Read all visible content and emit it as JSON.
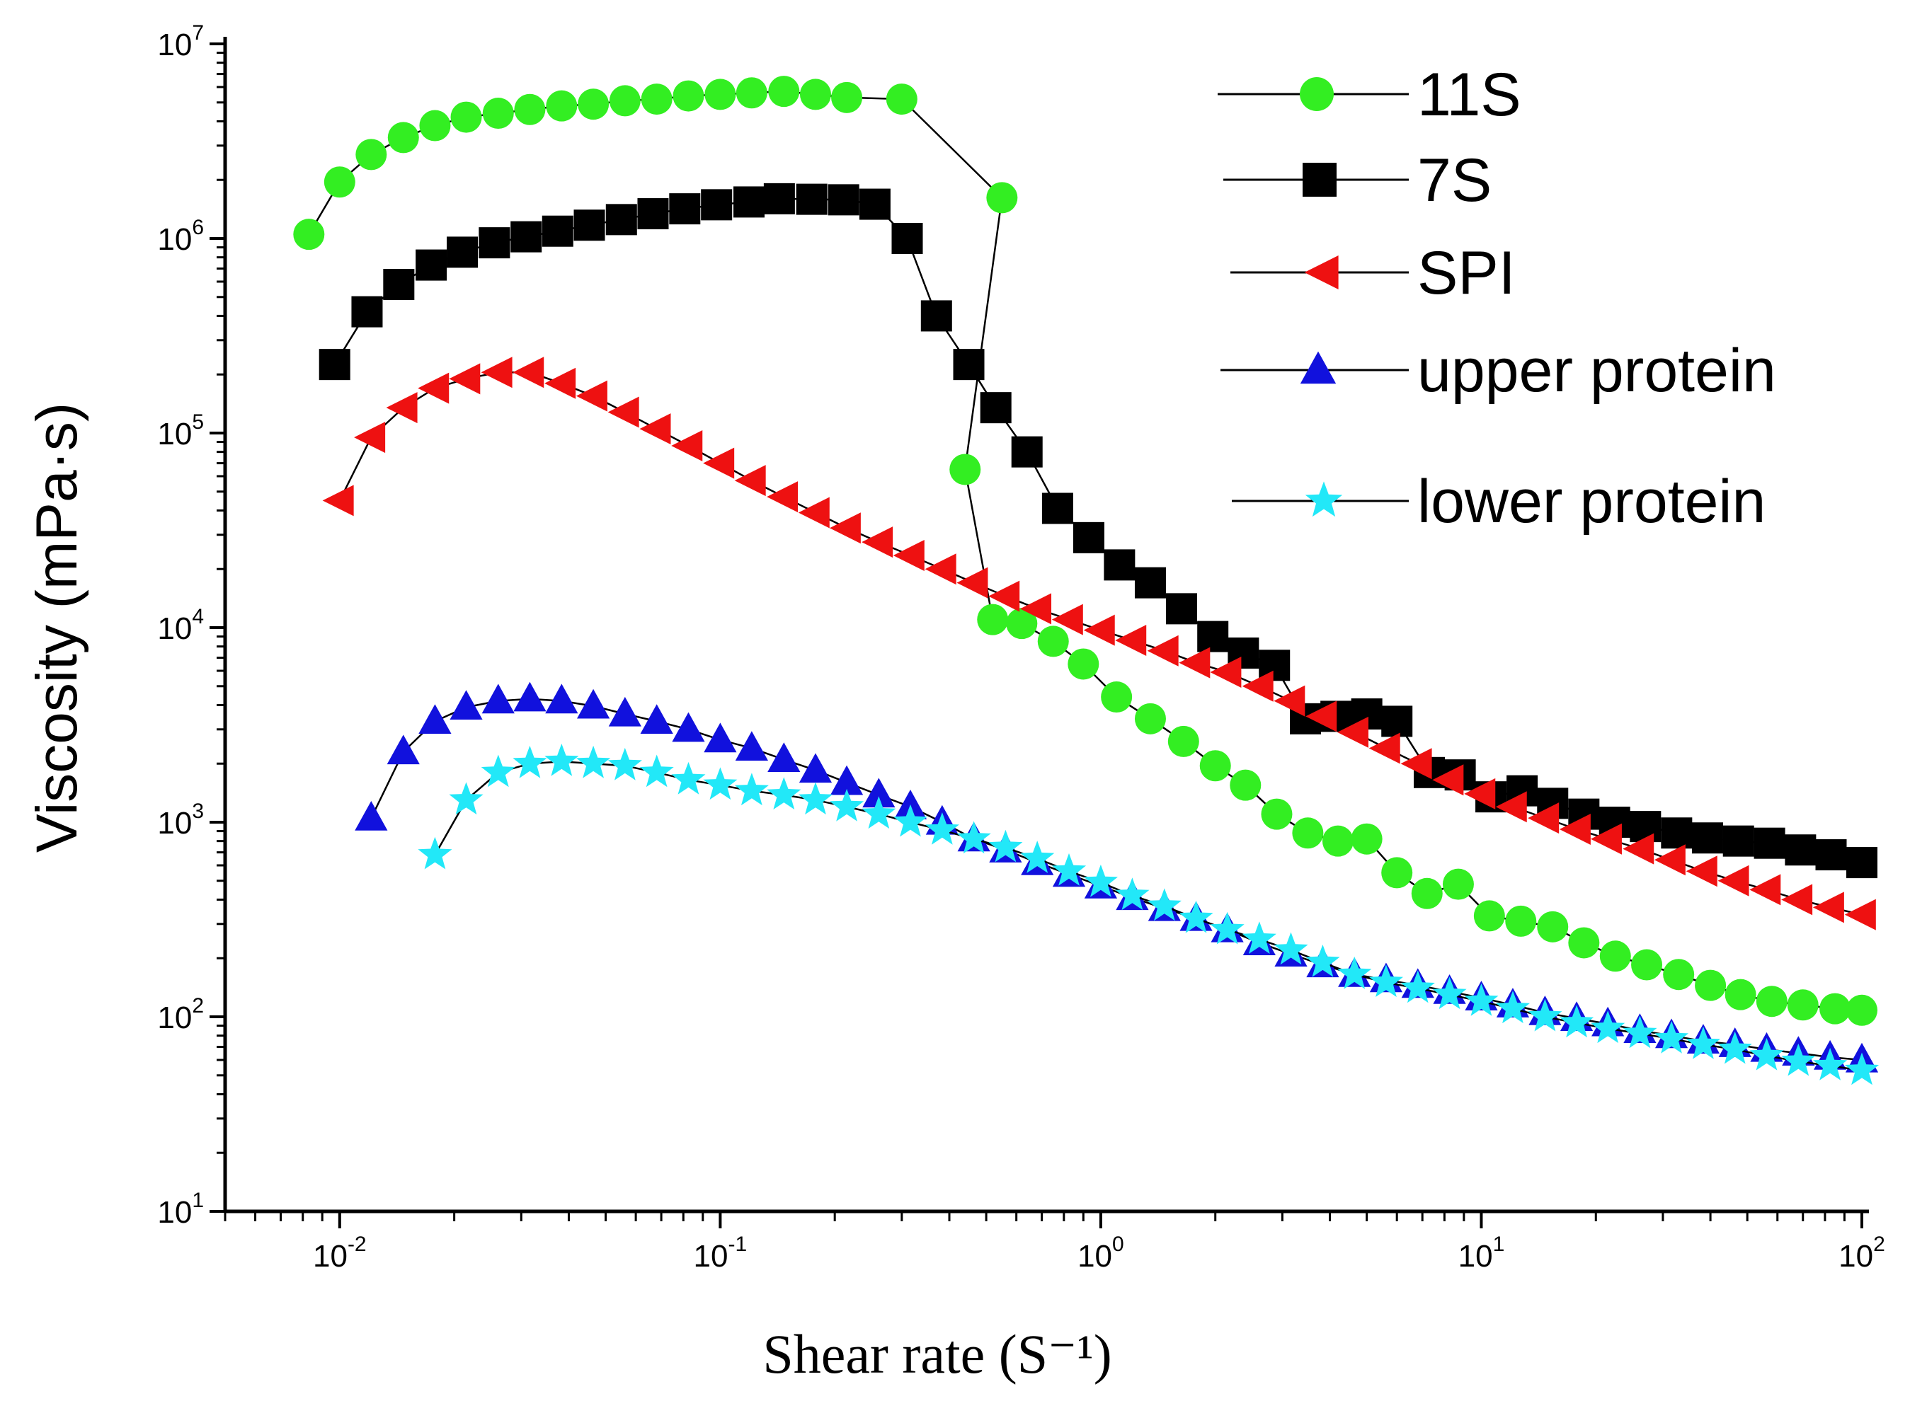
{
  "chart_data": {
    "type": "scatter",
    "title": "",
    "xlabel": "Shear rate (S⁻¹)",
    "ylabel": "Viscosity (mPa·s)",
    "xscale": "log",
    "yscale": "log",
    "xlim": [
      0.005,
      100
    ],
    "ylim": [
      10,
      10000000
    ],
    "x_ticks": [
      {
        "base": "10",
        "exp": "-2",
        "value": 0.01
      },
      {
        "base": "10",
        "exp": "-1",
        "value": 0.1
      },
      {
        "base": "10",
        "exp": "0",
        "value": 1
      },
      {
        "base": "10",
        "exp": "1",
        "value": 10
      },
      {
        "base": "10",
        "exp": "2",
        "value": 100
      }
    ],
    "y_ticks": [
      {
        "base": "10",
        "exp": "1",
        "value": 10
      },
      {
        "base": "10",
        "exp": "2",
        "value": 100
      },
      {
        "base": "10",
        "exp": "3",
        "value": 1000
      },
      {
        "base": "10",
        "exp": "4",
        "value": 10000
      },
      {
        "base": "10",
        "exp": "5",
        "value": 100000
      },
      {
        "base": "10",
        "exp": "6",
        "value": 1000000
      },
      {
        "base": "10",
        "exp": "7",
        "value": 10000000
      }
    ],
    "legend_position": "top-right",
    "series": [
      {
        "name": "11S",
        "marker": "circle",
        "color": "#33ee22",
        "x": [
          0.0083,
          0.01,
          0.0121,
          0.0147,
          0.0178,
          0.0215,
          0.0261,
          0.0316,
          0.0383,
          0.0464,
          0.0562,
          0.0681,
          0.0825,
          0.1,
          0.121,
          0.147,
          0.178,
          0.215,
          0.3,
          0.55,
          0.44,
          0.52,
          0.62,
          0.75,
          0.9,
          1.1,
          1.35,
          1.65,
          2.0,
          2.4,
          2.9,
          3.5,
          4.2,
          5.0,
          6.0,
          7.2,
          8.7,
          10.5,
          12.7,
          15.4,
          18.6,
          22.5,
          27.2,
          33,
          40,
          48,
          58,
          70,
          85,
          100
        ],
        "y": [
          1050000,
          1950000,
          2700000,
          3300000,
          3800000,
          4200000,
          4400000,
          4600000,
          4800000,
          4900000,
          5100000,
          5200000,
          5400000,
          5500000,
          5600000,
          5700000,
          5500000,
          5300000,
          5200000,
          1620000,
          65000,
          11000,
          10500,
          8500,
          6500,
          4400,
          3400,
          2600,
          1950,
          1550,
          1100,
          880,
          800,
          820,
          550,
          430,
          480,
          330,
          310,
          290,
          240,
          205,
          185,
          165,
          145,
          130,
          120,
          115,
          110,
          108
        ]
      },
      {
        "name": "7S",
        "marker": "square",
        "color": "#000000",
        "x": [
          0.0097,
          0.0118,
          0.0143,
          0.0174,
          0.021,
          0.0255,
          0.0309,
          0.0374,
          0.0453,
          0.055,
          0.0666,
          0.0807,
          0.0978,
          0.119,
          0.143,
          0.174,
          0.211,
          0.255,
          0.31,
          0.37,
          0.45,
          0.53,
          0.64,
          0.77,
          0.93,
          1.12,
          1.35,
          1.63,
          1.97,
          2.37,
          2.86,
          3.45,
          4.15,
          5.0,
          6.0,
          7.3,
          8.8,
          10.6,
          12.8,
          15.4,
          18.6,
          22.4,
          27.0,
          32.6,
          39.3,
          47.4,
          57.2,
          69,
          83,
          100
        ],
        "y": [
          225000,
          420000,
          580000,
          730000,
          850000,
          950000,
          1020000,
          1090000,
          1170000,
          1250000,
          1340000,
          1420000,
          1490000,
          1540000,
          1600000,
          1590000,
          1580000,
          1500000,
          1000000,
          400000,
          225000,
          135000,
          80000,
          41000,
          29000,
          21000,
          17000,
          12500,
          9000,
          7400,
          6400,
          3400,
          3500,
          3600,
          3300,
          1800,
          1750,
          1350,
          1450,
          1250,
          1100,
          1000,
          950,
          880,
          830,
          800,
          780,
          720,
          680,
          620
        ]
      },
      {
        "name": "SPI",
        "marker": "triangle-left",
        "color": "#ee1111",
        "x": [
          0.01,
          0.0121,
          0.0147,
          0.0178,
          0.0215,
          0.0261,
          0.0316,
          0.0383,
          0.0464,
          0.0562,
          0.0681,
          0.0825,
          0.1,
          0.121,
          0.147,
          0.178,
          0.215,
          0.261,
          0.316,
          0.383,
          0.464,
          0.562,
          0.681,
          0.825,
          1.0,
          1.21,
          1.47,
          1.78,
          2.15,
          2.61,
          3.16,
          3.83,
          4.64,
          5.62,
          6.81,
          8.25,
          10,
          12.1,
          14.7,
          17.8,
          21.5,
          26.1,
          31.6,
          38.3,
          46.4,
          56.2,
          68.1,
          82.5,
          100
        ],
        "y": [
          45000,
          95000,
          135000,
          170000,
          190000,
          205000,
          205000,
          180000,
          155000,
          128000,
          105000,
          86000,
          70000,
          57000,
          47000,
          39000,
          32500,
          27500,
          23500,
          20000,
          17000,
          14500,
          12500,
          11000,
          9700,
          8600,
          7600,
          6600,
          5900,
          5000,
          4200,
          3500,
          2900,
          2400,
          2000,
          1650,
          1400,
          1200,
          1050,
          920,
          820,
          730,
          640,
          560,
          500,
          450,
          400,
          365,
          335
        ]
      },
      {
        "name": "upper protein",
        "marker": "triangle-up",
        "color": "#1111dd",
        "x": [
          0.0121,
          0.0147,
          0.0178,
          0.0215,
          0.0261,
          0.0316,
          0.0383,
          0.0464,
          0.0562,
          0.0681,
          0.0825,
          0.1,
          0.121,
          0.147,
          0.178,
          0.215,
          0.261,
          0.316,
          0.383,
          0.464,
          0.562,
          0.681,
          0.825,
          1.0,
          1.21,
          1.47,
          1.78,
          2.15,
          2.61,
          3.16,
          3.83,
          4.64,
          5.62,
          6.81,
          8.25,
          10,
          12.1,
          14.7,
          17.8,
          21.5,
          26.1,
          31.6,
          38.3,
          46.4,
          56.2,
          68.1,
          82.5,
          100
        ],
        "y": [
          1050,
          2300,
          3300,
          3900,
          4200,
          4300,
          4200,
          3950,
          3600,
          3300,
          3000,
          2650,
          2400,
          2100,
          1850,
          1600,
          1380,
          1200,
          1000,
          820,
          720,
          620,
          540,
          470,
          410,
          360,
          320,
          280,
          240,
          210,
          185,
          165,
          155,
          145,
          135,
          125,
          115,
          105,
          98,
          92,
          85,
          80,
          75,
          72,
          68,
          65,
          62,
          60
        ]
      },
      {
        "name": "lower protein",
        "marker": "star",
        "color": "#22e8f8",
        "x": [
          0.0178,
          0.0215,
          0.0261,
          0.0316,
          0.0383,
          0.0464,
          0.0562,
          0.0681,
          0.0825,
          0.1,
          0.121,
          0.147,
          0.178,
          0.215,
          0.261,
          0.316,
          0.383,
          0.464,
          0.562,
          0.681,
          0.825,
          1.0,
          1.21,
          1.47,
          1.78,
          2.15,
          2.61,
          3.16,
          3.83,
          4.64,
          5.62,
          6.81,
          8.25,
          10,
          12.1,
          14.7,
          17.8,
          21.5,
          26.1,
          31.6,
          38.3,
          46.4,
          56.2,
          68.1,
          82.5,
          100
        ],
        "y": [
          680,
          1300,
          1800,
          2000,
          2050,
          2000,
          1950,
          1800,
          1650,
          1550,
          1450,
          1380,
          1300,
          1200,
          1100,
          1000,
          910,
          820,
          740,
          650,
          560,
          490,
          420,
          370,
          320,
          280,
          250,
          220,
          190,
          165,
          150,
          140,
          130,
          120,
          110,
          100,
          93,
          87,
          82,
          77,
          72,
          68,
          63,
          59,
          56,
          53
        ]
      }
    ]
  }
}
